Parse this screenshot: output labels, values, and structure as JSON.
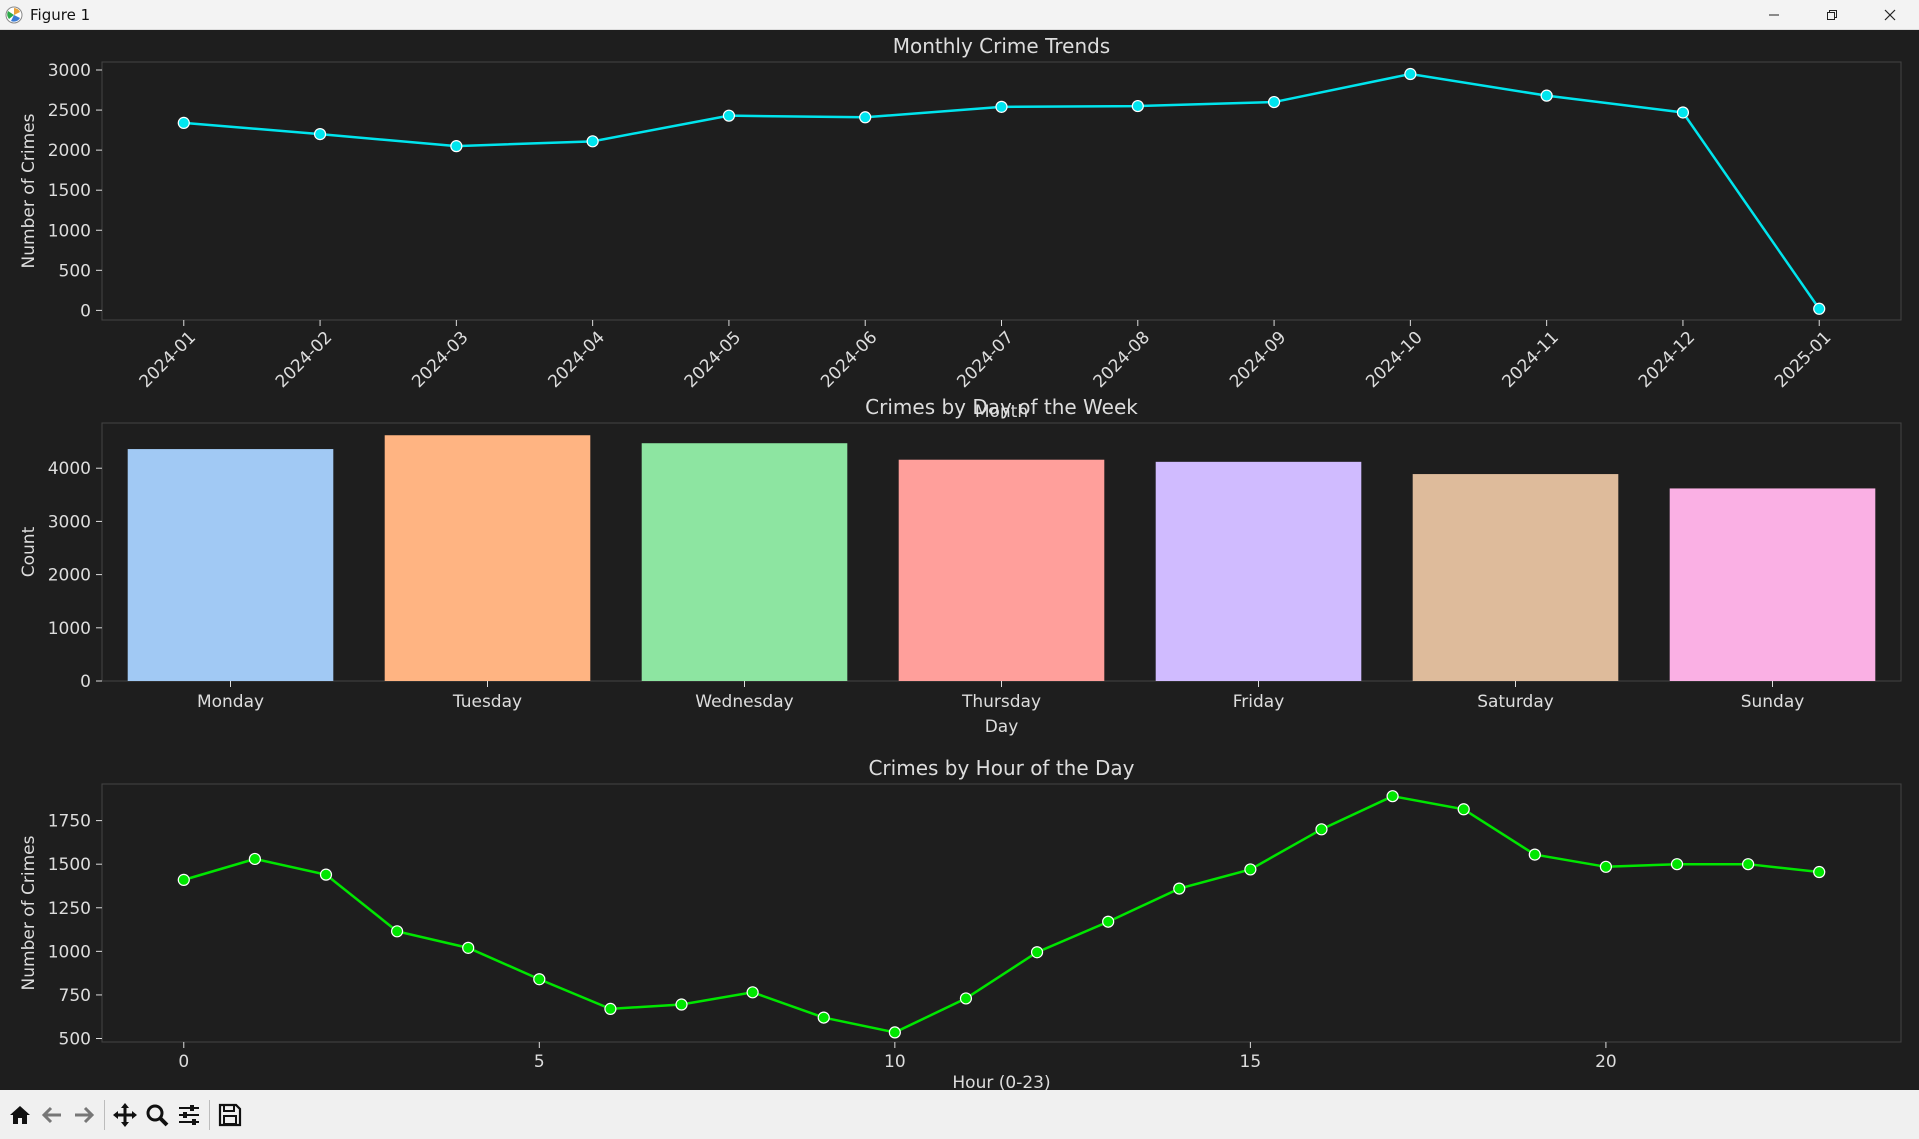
{
  "window": {
    "title": "Figure 1"
  },
  "toolbar": {
    "buttons": [
      {
        "name": "home-icon"
      },
      {
        "name": "back-icon"
      },
      {
        "name": "forward-icon"
      },
      {
        "name": "pan-icon"
      },
      {
        "name": "zoom-icon"
      },
      {
        "name": "configure-subplots-icon"
      },
      {
        "name": "save-icon"
      }
    ]
  },
  "colors": {
    "background": "#1e1e1e",
    "monthly_line": "#00e5ee",
    "hourly_line": "#00e600",
    "text": "#dddddd"
  },
  "chart_data": [
    {
      "type": "line",
      "title": "Monthly Crime Trends",
      "xlabel": "Month",
      "ylabel": "Number of Crimes",
      "ylim": [
        -120,
        3100
      ],
      "yticks": [
        0,
        500,
        1000,
        1500,
        2000,
        2500,
        3000
      ],
      "categories": [
        "2024-01",
        "2024-02",
        "2024-03",
        "2024-04",
        "2024-05",
        "2024-06",
        "2024-07",
        "2024-08",
        "2024-09",
        "2024-10",
        "2024-11",
        "2024-12",
        "2025-01"
      ],
      "values": [
        2340,
        2200,
        2050,
        2110,
        2430,
        2410,
        2540,
        2550,
        2600,
        2950,
        2680,
        2470,
        20
      ]
    },
    {
      "type": "bar",
      "title": "Crimes by Day of the Week",
      "xlabel": "Day",
      "ylabel": "Count",
      "ylim": [
        0,
        4850
      ],
      "yticks": [
        0,
        1000,
        2000,
        3000,
        4000
      ],
      "categories": [
        "Monday",
        "Tuesday",
        "Wednesday",
        "Thursday",
        "Friday",
        "Saturday",
        "Sunday"
      ],
      "values": [
        4360,
        4620,
        4470,
        4160,
        4120,
        3890,
        3620
      ],
      "colors": [
        "#a1c9f4",
        "#ffb482",
        "#8de5a1",
        "#ff9f9b",
        "#d0bbff",
        "#debb9b",
        "#fab0e4"
      ]
    },
    {
      "type": "line",
      "title": "Crimes by Hour of the Day",
      "xlabel": "Hour (0-23)",
      "ylabel": "Number of Crimes",
      "ylim": [
        480,
        1960
      ],
      "xlim": [
        -1.15,
        24.15
      ],
      "yticks": [
        500,
        750,
        1000,
        1250,
        1500,
        1750
      ],
      "xticks": [
        0,
        5,
        10,
        15,
        20
      ],
      "x": [
        0,
        1,
        2,
        3,
        4,
        5,
        6,
        7,
        8,
        9,
        10,
        11,
        12,
        13,
        14,
        15,
        16,
        17,
        18,
        19,
        20,
        21,
        22,
        23
      ],
      "values": [
        1410,
        1530,
        1440,
        1115,
        1020,
        840,
        670,
        695,
        765,
        620,
        535,
        730,
        995,
        1170,
        1360,
        1470,
        1700,
        1890,
        1815,
        1555,
        1485,
        1500,
        1500,
        1455
      ]
    }
  ]
}
